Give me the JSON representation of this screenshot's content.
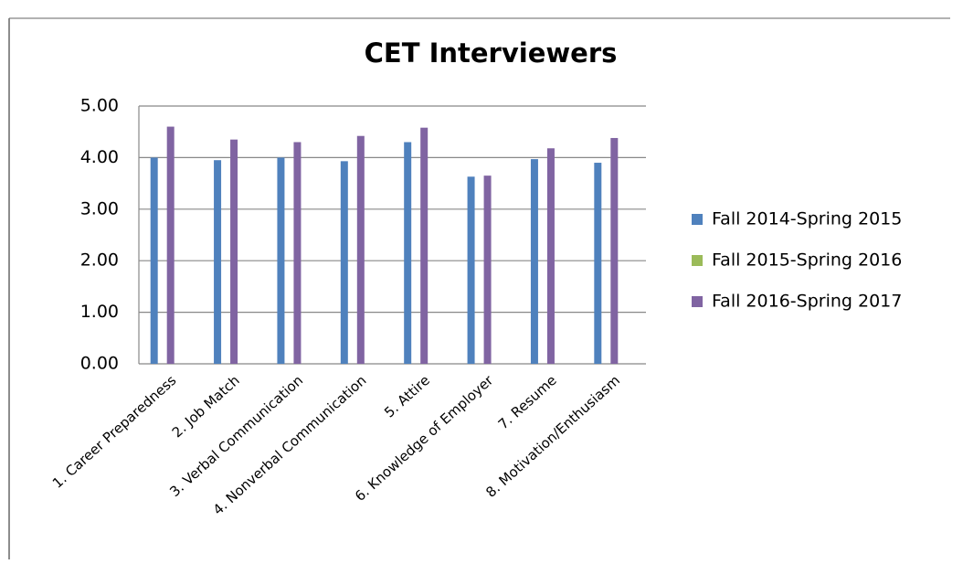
{
  "chart_data": {
    "type": "bar",
    "title": "CET Interviewers",
    "categories": [
      "1. Career Preparedness",
      "2. Job Match",
      "3. Verbal Communication",
      "4. Nonverbal Communication",
      "5. Attire",
      "6. Knowledge of Employer",
      "7. Resume",
      "8. Motivation/Enthusiasm"
    ],
    "series": [
      {
        "name": "Fall 2014-Spring 2015",
        "color": "#4f81bd",
        "values": [
          4.0,
          3.95,
          4.0,
          3.93,
          4.3,
          3.63,
          3.97,
          3.9
        ]
      },
      {
        "name": "Fall 2015-Spring 2016",
        "color": "#9bbb59",
        "values": [
          null,
          null,
          null,
          null,
          null,
          null,
          null,
          null
        ]
      },
      {
        "name": "Fall 2016-Spring 2017",
        "color": "#8064a2",
        "values": [
          4.6,
          4.35,
          4.3,
          4.42,
          4.58,
          3.65,
          4.18,
          4.38
        ]
      }
    ],
    "ylim": [
      0,
      5
    ],
    "yticks": [
      {
        "value": 0,
        "label": "0.00"
      },
      {
        "value": 1,
        "label": "1.00"
      },
      {
        "value": 2,
        "label": "2.00"
      },
      {
        "value": 3,
        "label": "3.00"
      },
      {
        "value": 4,
        "label": "4.00"
      },
      {
        "value": 5,
        "label": "5.00"
      }
    ],
    "grid": true,
    "legend": "right"
  }
}
